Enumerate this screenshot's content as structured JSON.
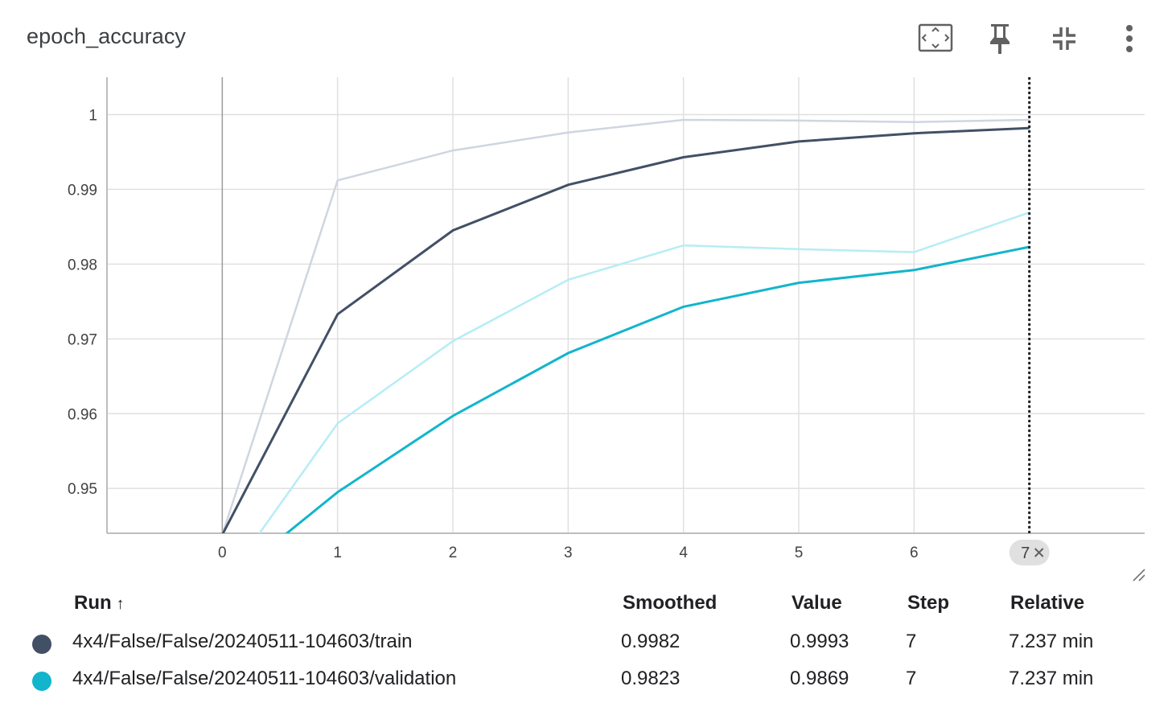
{
  "card": {
    "title": "epoch_accuracy",
    "toolbar": [
      {
        "name": "fit-domain-icon",
        "label": "Fit domain to data"
      },
      {
        "name": "pin-icon",
        "label": "Pin card"
      },
      {
        "name": "collapse-icon",
        "label": "Collapse"
      },
      {
        "name": "more-vert-icon",
        "label": "More"
      }
    ]
  },
  "chart_data": {
    "type": "line",
    "title": "epoch_accuracy",
    "xlabel": "",
    "ylabel": "",
    "xlim": [
      -1,
      8
    ],
    "ylim": [
      0.944,
      1.005
    ],
    "x_ticks": [
      0,
      1,
      2,
      3,
      4,
      5,
      6,
      7
    ],
    "y_ticks": [
      0.95,
      0.96,
      0.97,
      0.98,
      0.99,
      1
    ],
    "y_tick_labels": [
      "0.95",
      "0.96",
      "0.97",
      "0.98",
      "0.99",
      "1"
    ],
    "grid": true,
    "hover_step": 7,
    "hover_step_label": "7",
    "series": [
      {
        "name": "4x4/False/False/20240511-104603/train",
        "color": "#425066",
        "raw_color": "#cfd5e1",
        "x": [
          0,
          1,
          2,
          3,
          4,
          5,
          6,
          7
        ],
        "smoothed": [
          0.9438,
          0.9733,
          0.9845,
          0.9906,
          0.9943,
          0.9964,
          0.9975,
          0.9982
        ],
        "raw": [
          0.9438,
          0.9912,
          0.9952,
          0.9976,
          0.9993,
          0.9992,
          0.999,
          0.9993
        ]
      },
      {
        "name": "4x4/False/False/20240511-104603/validation",
        "color": "#12b5cb",
        "raw_color": "#b6edf5",
        "x": [
          0,
          1,
          2,
          3,
          4,
          5,
          6,
          7
        ],
        "smoothed": [
          0.937,
          0.9495,
          0.9597,
          0.9681,
          0.9743,
          0.9775,
          0.9792,
          0.9823
        ],
        "raw": [
          0.937,
          0.9587,
          0.9697,
          0.9779,
          0.9825,
          0.982,
          0.9816,
          0.9869
        ]
      }
    ]
  },
  "table": {
    "headers": {
      "run": "Run",
      "smoothed": "Smoothed",
      "value": "Value",
      "step": "Step",
      "relative": "Relative"
    },
    "sort_arrow": "↑",
    "rows": [
      {
        "color": "#425066",
        "run": "4x4/False/False/20240511-104603/train",
        "smoothed": "0.9982",
        "value": "0.9993",
        "step": "7",
        "relative": "7.237 min"
      },
      {
        "color": "#12b5cb",
        "run": "4x4/False/False/20240511-104603/validation",
        "smoothed": "0.9823",
        "value": "0.9869",
        "step": "7",
        "relative": "7.237 min"
      }
    ]
  }
}
